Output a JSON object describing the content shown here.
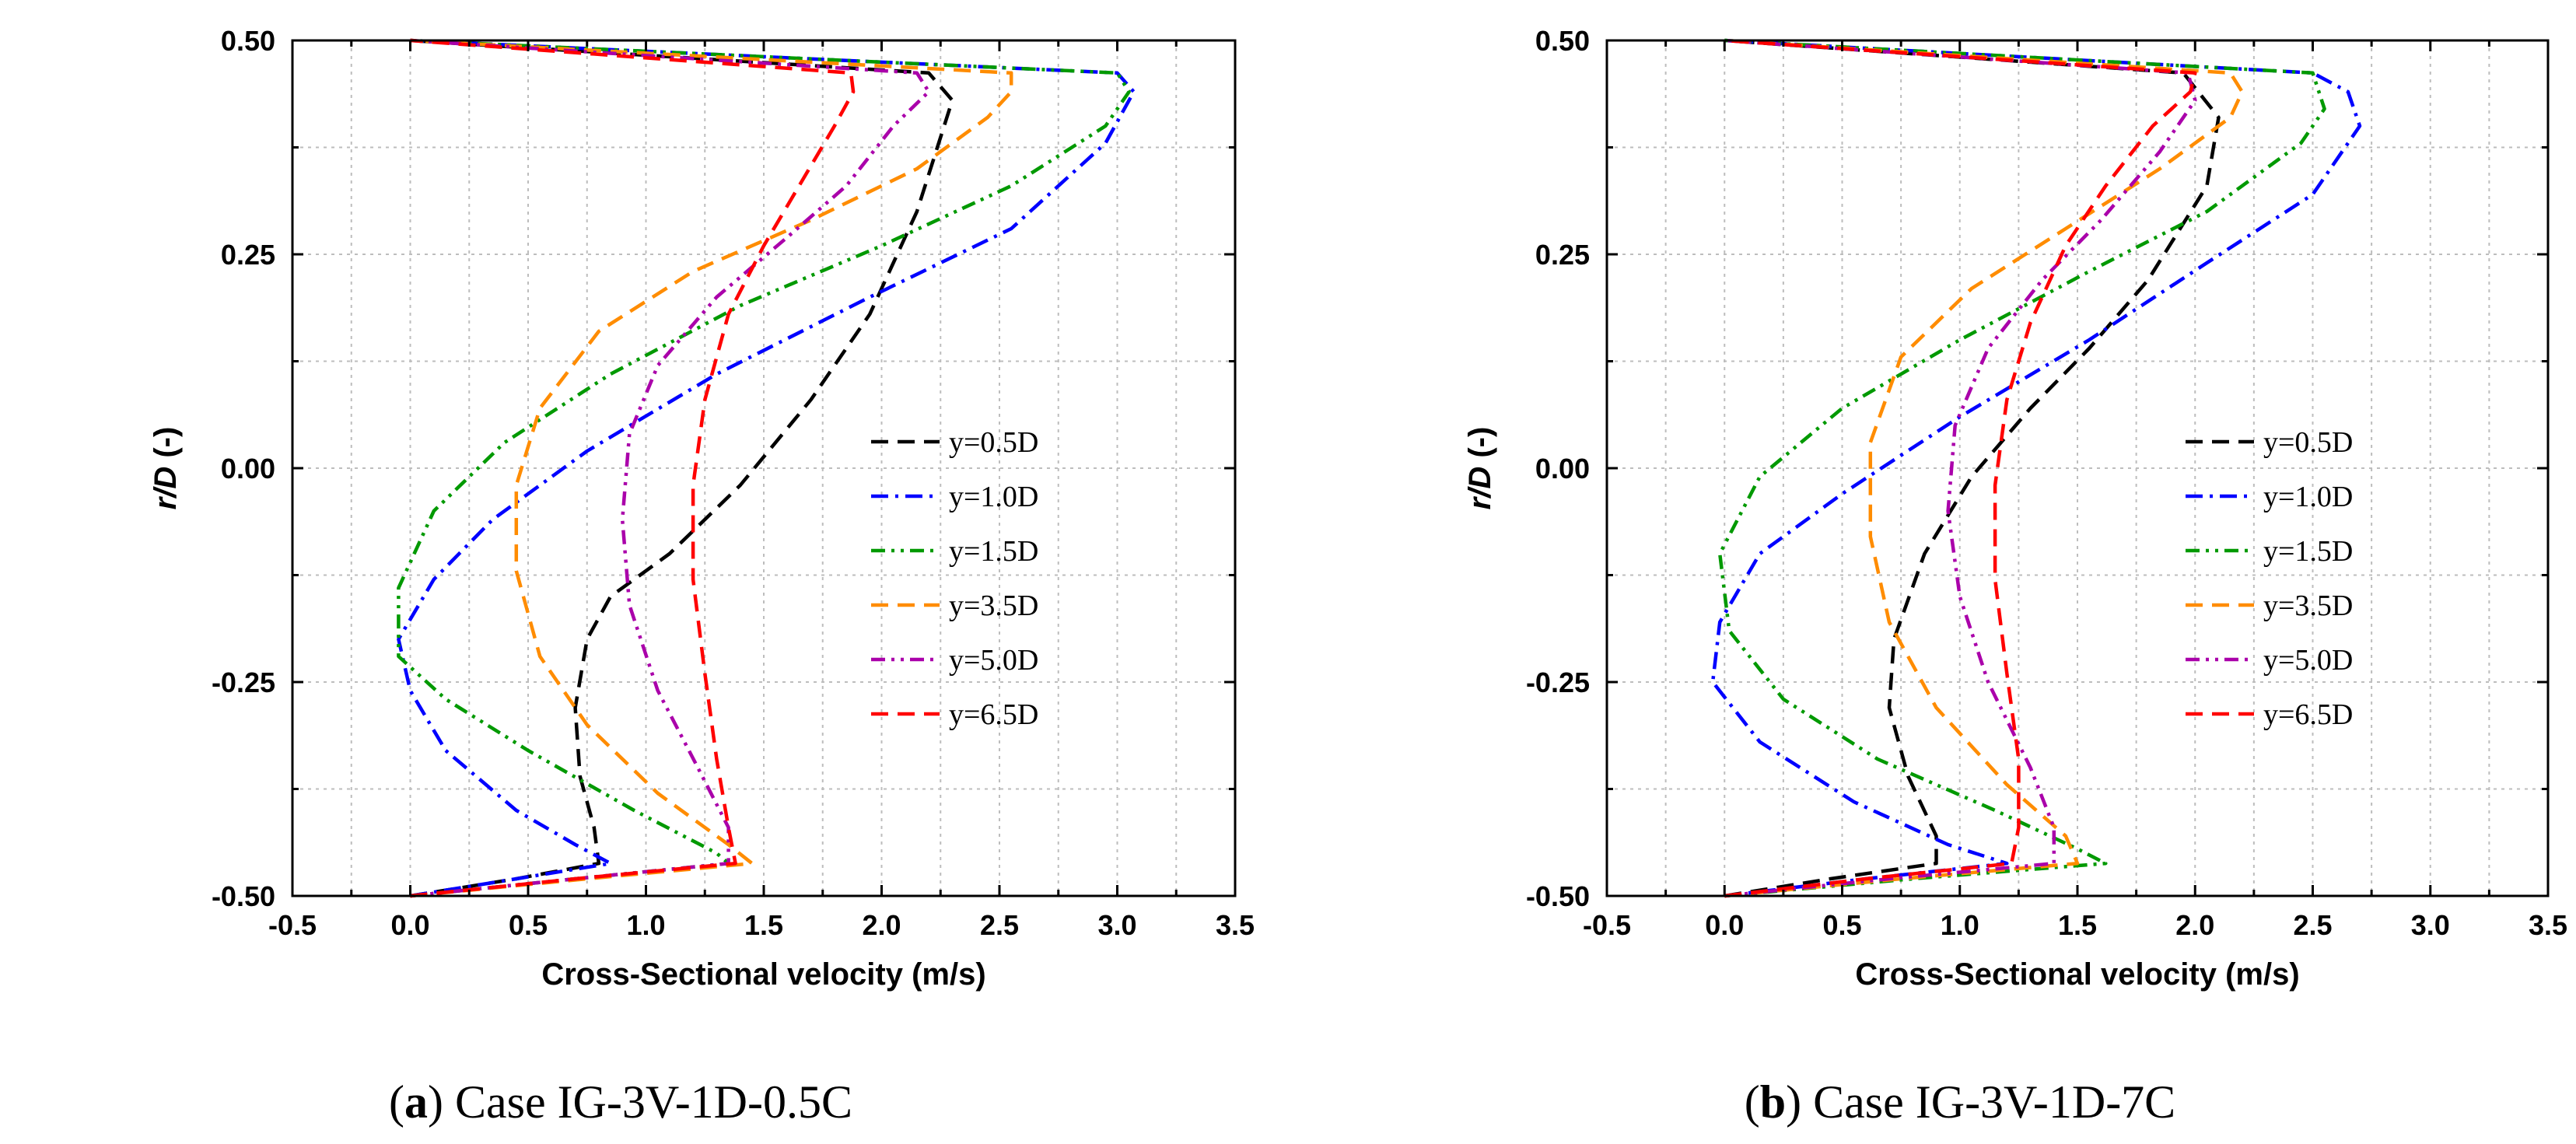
{
  "chart_data": [
    {
      "type": "line",
      "caption": {
        "letter": "a",
        "text": "Case IG-3V-1D-0.5C"
      },
      "xlabel": "Cross-Sectional velocity (m/s)",
      "ylabel": "r/D (-)",
      "xlim": [
        -0.5,
        3.5
      ],
      "ylim": [
        -0.5,
        0.5
      ],
      "x_ticks": [
        "-0.5",
        "0.0",
        "0.5",
        "1.0",
        "1.5",
        "2.0",
        "2.5",
        "3.0",
        "3.5"
      ],
      "y_ticks": [
        "-0.50",
        "-0.25",
        "0.00",
        "0.25",
        "0.50"
      ],
      "grid": true,
      "legend_position": "center-right",
      "series": [
        {
          "name": "y=0.5D",
          "color": "#000000",
          "dash": "dash",
          "x": [
            0.0,
            0.45,
            0.8,
            0.78,
            0.72,
            0.7,
            0.75,
            0.85,
            1.1,
            1.4,
            1.7,
            1.95,
            2.15,
            2.3,
            2.2,
            0.0
          ],
          "y": [
            -0.5,
            -0.48,
            -0.462,
            -0.42,
            -0.36,
            -0.28,
            -0.2,
            -0.15,
            -0.1,
            -0.02,
            0.08,
            0.18,
            0.3,
            0.43,
            0.462,
            0.5
          ]
        },
        {
          "name": "y=1.0D",
          "color": "#0000ff",
          "dash": "dashdot",
          "x": [
            0.0,
            0.45,
            0.85,
            0.7,
            0.45,
            0.15,
            0.0,
            -0.05,
            0.1,
            0.35,
            0.75,
            1.3,
            1.95,
            2.55,
            2.95,
            3.07,
            3.0,
            0.0
          ],
          "y": [
            -0.5,
            -0.48,
            -0.462,
            -0.44,
            -0.4,
            -0.33,
            -0.26,
            -0.2,
            -0.13,
            -0.06,
            0.02,
            0.11,
            0.2,
            0.28,
            0.38,
            0.44,
            0.462,
            0.5
          ]
        },
        {
          "name": "y=1.5D",
          "color": "#009900",
          "dash": "dashdotdot",
          "x": [
            0.0,
            0.7,
            1.35,
            1.3,
            0.95,
            0.5,
            0.15,
            -0.05,
            -0.05,
            0.1,
            0.4,
            0.85,
            1.4,
            2.0,
            2.55,
            2.95,
            3.05,
            3.0,
            0.0
          ],
          "y": [
            -0.5,
            -0.48,
            -0.462,
            -0.45,
            -0.4,
            -0.33,
            -0.27,
            -0.22,
            -0.14,
            -0.05,
            0.03,
            0.11,
            0.19,
            0.26,
            0.33,
            0.4,
            0.44,
            0.462,
            0.5
          ]
        },
        {
          "name": "y=3.5D",
          "color": "#ff8c00",
          "dash": "dash",
          "x": [
            0.0,
            0.75,
            1.45,
            1.35,
            1.05,
            0.75,
            0.55,
            0.45,
            0.45,
            0.55,
            0.8,
            1.2,
            1.7,
            2.15,
            2.45,
            2.55,
            2.55,
            0.0
          ],
          "y": [
            -0.5,
            -0.48,
            -0.462,
            -0.44,
            -0.38,
            -0.3,
            -0.22,
            -0.12,
            -0.02,
            0.07,
            0.16,
            0.23,
            0.29,
            0.35,
            0.41,
            0.44,
            0.462,
            0.5
          ]
        },
        {
          "name": "y=5.0D",
          "color": "#aa00aa",
          "dash": "dashdotdot",
          "x": [
            0.0,
            0.7,
            1.35,
            1.35,
            1.22,
            1.05,
            0.93,
            0.9,
            0.93,
            1.05,
            1.3,
            1.6,
            1.85,
            2.05,
            2.2,
            2.15,
            0.0
          ],
          "y": [
            -0.5,
            -0.48,
            -0.462,
            -0.42,
            -0.35,
            -0.26,
            -0.16,
            -0.06,
            0.04,
            0.12,
            0.2,
            0.27,
            0.33,
            0.4,
            0.44,
            0.462,
            0.5
          ]
        },
        {
          "name": "y=6.5D",
          "color": "#ff0000",
          "dash": "dash",
          "x": [
            0.0,
            0.7,
            1.38,
            1.35,
            1.3,
            1.25,
            1.2,
            1.2,
            1.25,
            1.35,
            1.5,
            1.65,
            1.8,
            1.88,
            1.87,
            0.0
          ],
          "y": [
            -0.5,
            -0.48,
            -0.462,
            -0.42,
            -0.34,
            -0.24,
            -0.13,
            -0.02,
            0.08,
            0.18,
            0.26,
            0.33,
            0.4,
            0.44,
            0.462,
            0.5
          ]
        }
      ]
    },
    {
      "type": "line",
      "caption": {
        "letter": "b",
        "text": "Case IG-3V-1D-7C"
      },
      "xlabel": "Cross-Sectional velocity (m/s)",
      "ylabel": "r/D (-)",
      "xlim": [
        -0.5,
        3.5
      ],
      "ylim": [
        -0.5,
        0.5
      ],
      "x_ticks": [
        "-0.5",
        "0.0",
        "0.5",
        "1.0",
        "1.5",
        "2.0",
        "2.5",
        "3.0",
        "3.5"
      ],
      "y_ticks": [
        "-0.50",
        "-0.25",
        "0.00",
        "0.25",
        "0.50"
      ],
      "grid": true,
      "legend_position": "center-right",
      "series": [
        {
          "name": "y=0.5D",
          "color": "#000000",
          "dash": "dash",
          "x": [
            0.0,
            0.45,
            0.9,
            0.9,
            0.78,
            0.7,
            0.72,
            0.85,
            1.05,
            1.3,
            1.55,
            1.8,
            2.05,
            2.1,
            1.95,
            0.0
          ],
          "y": [
            -0.5,
            -0.48,
            -0.462,
            -0.43,
            -0.36,
            -0.28,
            -0.2,
            -0.1,
            -0.01,
            0.07,
            0.14,
            0.22,
            0.33,
            0.41,
            0.462,
            0.5
          ]
        },
        {
          "name": "y=1.0D",
          "color": "#0000ff",
          "dash": "dashdot",
          "x": [
            0.0,
            0.6,
            1.2,
            0.95,
            0.55,
            0.15,
            -0.05,
            -0.02,
            0.15,
            0.5,
            1.0,
            1.55,
            2.05,
            2.5,
            2.7,
            2.65,
            2.5,
            0.0
          ],
          "y": [
            -0.5,
            -0.48,
            -0.462,
            -0.44,
            -0.39,
            -0.32,
            -0.25,
            -0.18,
            -0.1,
            -0.03,
            0.06,
            0.15,
            0.24,
            0.32,
            0.4,
            0.44,
            0.462,
            0.5
          ]
        },
        {
          "name": "y=1.5D",
          "color": "#009900",
          "dash": "dashdotdot",
          "x": [
            0.0,
            0.8,
            1.62,
            1.5,
            1.15,
            0.65,
            0.25,
            0.02,
            -0.02,
            0.15,
            0.5,
            1.0,
            1.55,
            2.05,
            2.45,
            2.55,
            2.5,
            0.0
          ],
          "y": [
            -0.5,
            -0.48,
            -0.462,
            -0.445,
            -0.4,
            -0.34,
            -0.27,
            -0.19,
            -0.1,
            -0.01,
            0.07,
            0.15,
            0.23,
            0.3,
            0.38,
            0.42,
            0.462,
            0.5
          ]
        },
        {
          "name": "y=3.5D",
          "color": "#ff8c00",
          "dash": "dash",
          "x": [
            0.0,
            0.75,
            1.5,
            1.45,
            1.2,
            0.9,
            0.7,
            0.62,
            0.62,
            0.75,
            1.05,
            1.45,
            1.85,
            2.15,
            2.2,
            2.15,
            0.0
          ],
          "y": [
            -0.5,
            -0.48,
            -0.462,
            -0.43,
            -0.37,
            -0.28,
            -0.18,
            -0.08,
            0.03,
            0.13,
            0.21,
            0.28,
            0.35,
            0.41,
            0.44,
            0.462,
            0.5
          ]
        },
        {
          "name": "y=5.0D",
          "color": "#aa00aa",
          "dash": "dashdotdot",
          "x": [
            0.0,
            0.7,
            1.4,
            1.4,
            1.3,
            1.12,
            1.0,
            0.95,
            0.98,
            1.12,
            1.35,
            1.6,
            1.85,
            2.0,
            1.97,
            0.0
          ],
          "y": [
            -0.5,
            -0.48,
            -0.462,
            -0.42,
            -0.35,
            -0.25,
            -0.15,
            -0.05,
            0.05,
            0.14,
            0.22,
            0.29,
            0.37,
            0.43,
            0.462,
            0.5
          ]
        },
        {
          "name": "y=6.5D",
          "color": "#ff0000",
          "dash": "dash",
          "x": [
            0.0,
            0.6,
            1.22,
            1.25,
            1.25,
            1.2,
            1.15,
            1.15,
            1.2,
            1.3,
            1.45,
            1.62,
            1.82,
            1.98,
            2.0,
            0.0
          ],
          "y": [
            -0.5,
            -0.48,
            -0.462,
            -0.42,
            -0.34,
            -0.24,
            -0.13,
            -0.02,
            0.08,
            0.17,
            0.26,
            0.33,
            0.4,
            0.44,
            0.462,
            0.5
          ]
        }
      ]
    }
  ]
}
